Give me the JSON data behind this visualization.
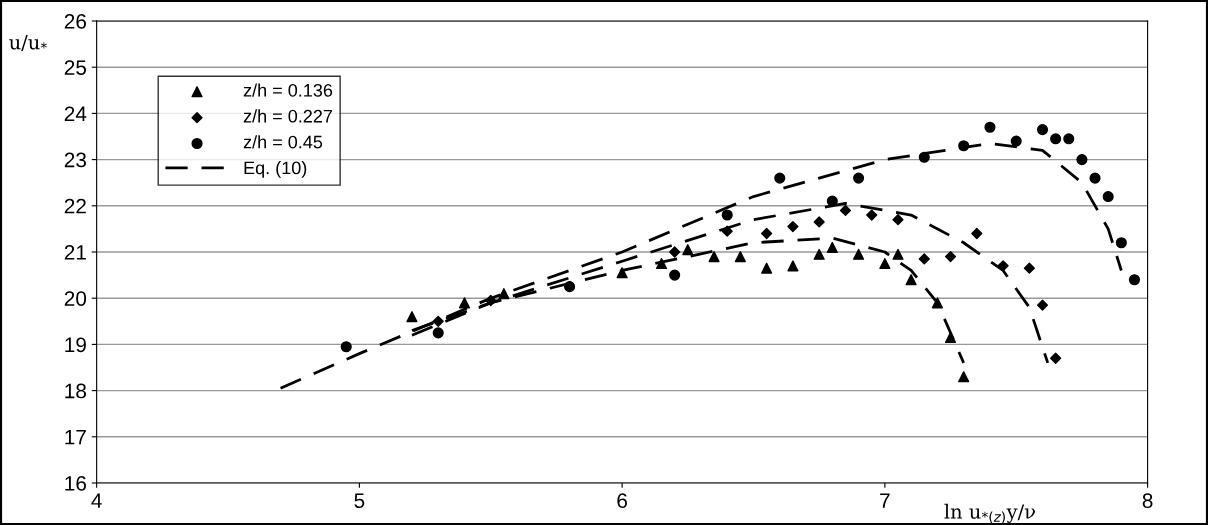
{
  "chart_data": {
    "type": "scatter",
    "xlabel": "ln u$_{*(z)}$y/ν",
    "ylabel": "u/u$_{*}$",
    "xlim": [
      4,
      8
    ],
    "ylim": [
      16,
      26
    ],
    "xticks": [
      4,
      5,
      6,
      7,
      8
    ],
    "yticks": [
      16,
      17,
      18,
      19,
      20,
      21,
      22,
      23,
      24,
      25,
      26
    ],
    "grid": "y",
    "legend": "top left",
    "series": [
      {
        "name": "z/h = 0.136",
        "marker": "triangle",
        "color": "#000000",
        "x": [
          5.2,
          5.4,
          5.55,
          6.0,
          6.15,
          6.25,
          6.35,
          6.45,
          6.55,
          6.65,
          6.75,
          6.8,
          6.9,
          7.0,
          7.05,
          7.1,
          7.2,
          7.25,
          7.3
        ],
        "values": [
          19.6,
          19.9,
          20.1,
          20.55,
          20.75,
          21.05,
          20.9,
          20.9,
          20.65,
          20.7,
          20.95,
          21.1,
          20.95,
          20.75,
          20.95,
          20.4,
          19.9,
          19.15,
          18.3
        ]
      },
      {
        "name": "z/h = 0.227",
        "marker": "diamond",
        "color": "#000000",
        "x": [
          5.3,
          5.5,
          6.2,
          6.4,
          6.55,
          6.65,
          6.75,
          6.85,
          6.95,
          7.05,
          7.15,
          7.25,
          7.35,
          7.45,
          7.55,
          7.6,
          7.65
        ],
        "values": [
          19.5,
          19.95,
          21.0,
          21.45,
          21.4,
          21.55,
          21.65,
          21.9,
          21.8,
          21.7,
          20.85,
          20.9,
          21.4,
          20.7,
          20.65,
          19.85,
          18.7
        ]
      },
      {
        "name": "z/h = 0.45",
        "marker": "circle",
        "color": "#000000",
        "x": [
          4.95,
          5.3,
          5.8,
          6.2,
          6.4,
          6.6,
          6.8,
          6.9,
          7.15,
          7.3,
          7.4,
          7.5,
          7.6,
          7.65,
          7.7,
          7.75,
          7.8,
          7.85,
          7.9,
          7.95
        ],
        "values": [
          18.95,
          19.25,
          20.25,
          20.5,
          21.8,
          22.6,
          22.1,
          22.6,
          23.05,
          23.3,
          23.7,
          23.4,
          23.65,
          23.45,
          23.45,
          23.0,
          22.6,
          22.2,
          21.2,
          20.4
        ]
      },
      {
        "name": "Eq. (10)",
        "type": "line",
        "line_style": "dashed",
        "marker": "none",
        "color": "#000000",
        "x": [
          5.2,
          5.5,
          6.0,
          6.5,
          6.8,
          7.0,
          7.1,
          7.2,
          7.3
        ],
        "values": [
          19.3,
          19.9,
          20.6,
          21.2,
          21.3,
          21.0,
          20.6,
          19.9,
          18.6
        ]
      },
      {
        "type": "line",
        "line_style": "dashed",
        "marker": "none",
        "color": "#000000",
        "x": [
          5.2,
          5.5,
          6.0,
          6.5,
          6.85,
          7.1,
          7.3,
          7.45,
          7.55,
          7.62
        ],
        "values": [
          19.2,
          19.9,
          20.8,
          21.7,
          22.05,
          21.8,
          21.2,
          20.6,
          19.8,
          18.6
        ]
      },
      {
        "type": "line",
        "line_style": "dashed",
        "marker": "none",
        "color": "#000000",
        "x": [
          4.7,
          5.0,
          5.5,
          6.0,
          6.5,
          7.0,
          7.4,
          7.6,
          7.75,
          7.85,
          7.9
        ],
        "values": [
          18.05,
          18.8,
          20.0,
          21.0,
          22.2,
          23.0,
          23.35,
          23.2,
          22.5,
          21.5,
          20.6
        ]
      }
    ]
  }
}
